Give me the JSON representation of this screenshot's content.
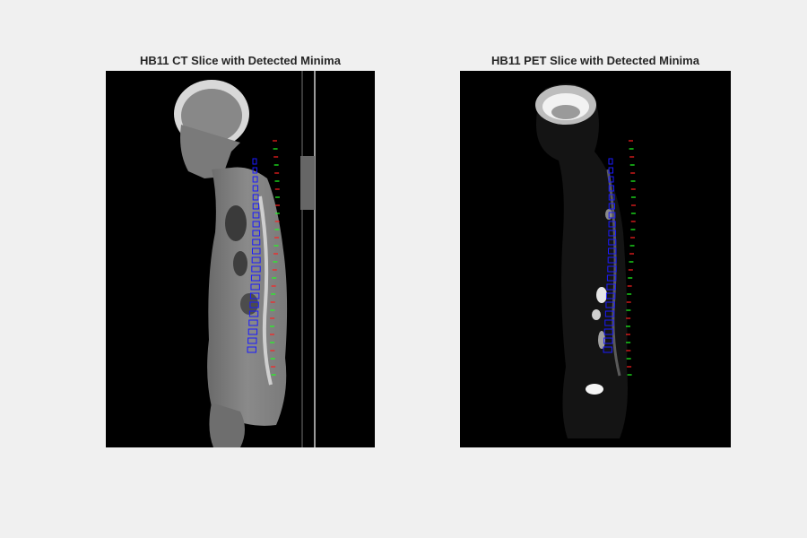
{
  "figure": {
    "panels": [
      {
        "title": "HB11 CT Slice with Detected Minima",
        "modality": "CT"
      },
      {
        "title": "HB11 PET Slice with Detected Minima",
        "modality": "PET"
      }
    ],
    "colors": {
      "background": "#f0f0f0",
      "image_background": "#000000",
      "minima_red": "#ff2020",
      "minima_green": "#20ff20",
      "vertebra_outline": "#1a1aff"
    }
  }
}
